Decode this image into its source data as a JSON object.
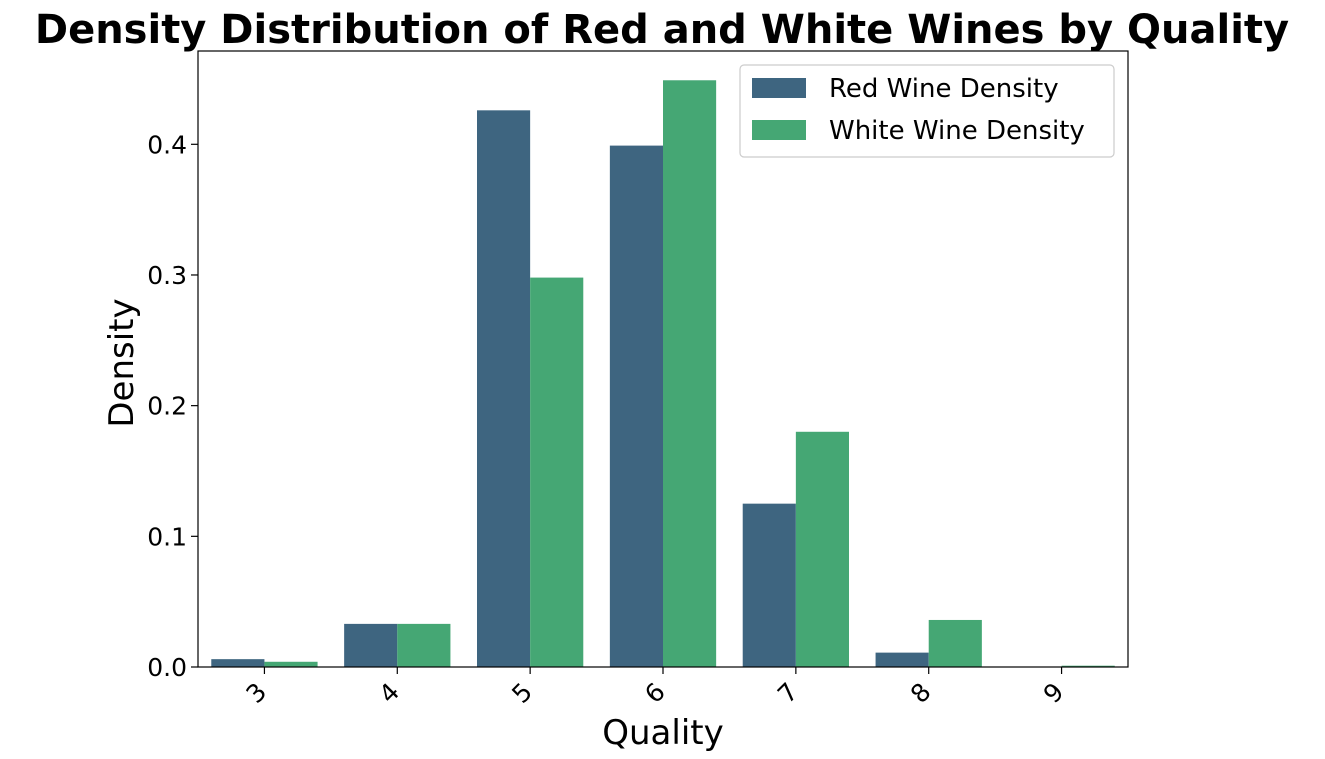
{
  "chart_data": {
    "type": "bar",
    "title": "Density Distribution of Red and White Wines by Quality",
    "xlabel": "Quality",
    "ylabel": "Density",
    "categories": [
      "3",
      "4",
      "5",
      "6",
      "7",
      "8",
      "9"
    ],
    "series": [
      {
        "name": "Red Wine Density",
        "color": "#3e6580",
        "values": [
          0.006,
          0.033,
          0.426,
          0.399,
          0.125,
          0.011,
          0.0
        ]
      },
      {
        "name": "White Wine Density",
        "color": "#45a774",
        "values": [
          0.004,
          0.033,
          0.298,
          0.449,
          0.18,
          0.036,
          0.001
        ]
      }
    ],
    "yticks": [
      "0.0",
      "0.1",
      "0.2",
      "0.3",
      "0.4"
    ],
    "ytick_values": [
      0.0,
      0.1,
      0.2,
      0.3,
      0.4
    ],
    "ylim": [
      0,
      0.4714
    ],
    "xtick_rotation": "45 degrees",
    "legend_position": "top-right",
    "grid": false
  }
}
